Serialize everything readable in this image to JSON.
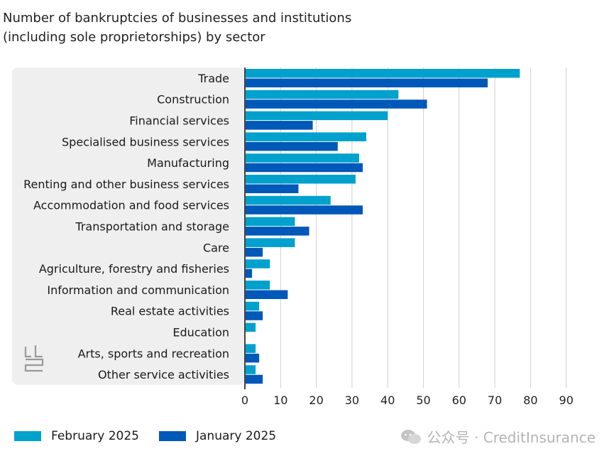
{
  "title": {
    "line1": "Number of bankruptcies of businesses and institutions",
    "line2": "(including sole proprietorships) by sector"
  },
  "colors": {
    "february": "#00a1cd",
    "january": "#0058b8",
    "panel": "#efefef",
    "grid": "#cfcfcf"
  },
  "legend": {
    "february": "February 2025",
    "january": "January 2025"
  },
  "watermark": "公众号 · CreditInsurance",
  "logo_icon": "cbs-logo-icon",
  "chart_data": {
    "type": "bar",
    "orientation": "horizontal",
    "categories": [
      "Trade",
      "Construction",
      "Financial services",
      "Specialised business services",
      "Manufacturing",
      "Renting and other business services",
      "Accommodation and food services",
      "Transportation and storage",
      "Care",
      "Agriculture, forestry and fisheries",
      "Information and communication",
      "Real estate activities",
      "Education",
      "Arts, sports and recreation",
      "Other service activities"
    ],
    "series": [
      {
        "name": "February 2025",
        "values": [
          77,
          43,
          40,
          34,
          32,
          31,
          24,
          14,
          14,
          7,
          7,
          4,
          3,
          3,
          3
        ]
      },
      {
        "name": "January 2025",
        "values": [
          68,
          51,
          19,
          26,
          33,
          15,
          33,
          18,
          5,
          2,
          12,
          5,
          0,
          4,
          5
        ]
      }
    ],
    "xticks": [
      "0",
      "10",
      "20",
      "30",
      "40",
      "50",
      "60",
      "70",
      "80",
      "90"
    ],
    "xlim": [
      0,
      90
    ],
    "grid": true,
    "legend_position": "bottom"
  }
}
